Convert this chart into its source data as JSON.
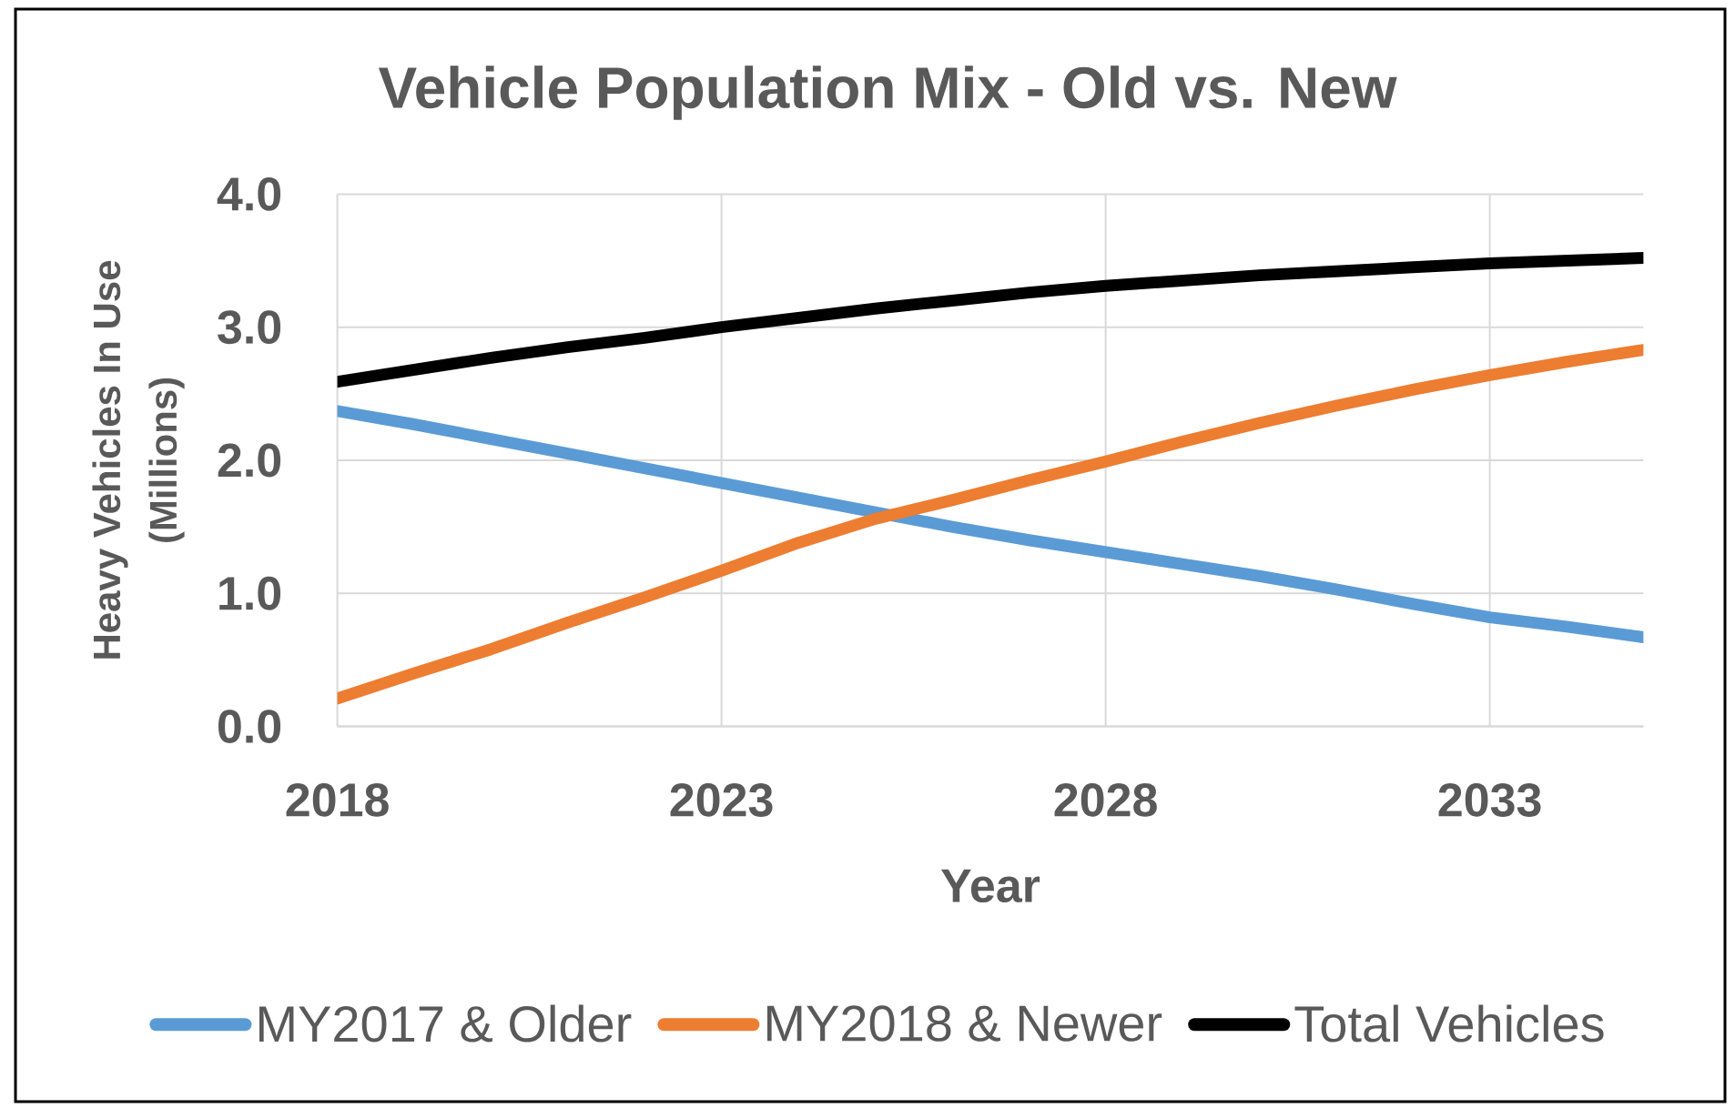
{
  "chart_data": {
    "type": "line",
    "title": "Vehicle Population Mix - Old vs. New",
    "xlabel": "Year",
    "ylabel": "Heavy Vehicles In Use (Millions)",
    "x": [
      2018,
      2019,
      2020,
      2021,
      2022,
      2023,
      2024,
      2025,
      2026,
      2027,
      2028,
      2029,
      2030,
      2031,
      2032,
      2033,
      2034,
      2035
    ],
    "series": [
      {
        "name": "MY2017 & Older",
        "color": "#5b9bd5",
        "values": [
          2.37,
          2.27,
          2.16,
          2.05,
          1.94,
          1.83,
          1.72,
          1.61,
          1.5,
          1.4,
          1.31,
          1.22,
          1.13,
          1.03,
          0.92,
          0.82,
          0.75,
          0.67
        ]
      },
      {
        "name": "MY2018 & Newer",
        "color": "#ed7d31",
        "values": [
          0.21,
          0.4,
          0.58,
          0.78,
          0.97,
          1.17,
          1.38,
          1.56,
          1.7,
          1.85,
          1.99,
          2.14,
          2.28,
          2.41,
          2.53,
          2.64,
          2.74,
          2.83
        ]
      },
      {
        "name": "Total Vehicles",
        "color": "#000000",
        "values": [
          2.59,
          2.68,
          2.77,
          2.85,
          2.92,
          3.0,
          3.07,
          3.14,
          3.2,
          3.26,
          3.31,
          3.35,
          3.39,
          3.42,
          3.45,
          3.48,
          3.5,
          3.52
        ]
      }
    ],
    "xlim": [
      2018,
      2035
    ],
    "ylim": [
      0,
      4
    ],
    "xticks": [
      2018,
      2023,
      2028,
      2033
    ],
    "yticks": [
      {
        "value": 0,
        "label": "0.0"
      },
      {
        "value": 1,
        "label": "1.0"
      },
      {
        "value": 2,
        "label": "2.0"
      },
      {
        "value": 3,
        "label": "3.0"
      },
      {
        "value": 4,
        "label": "4.0"
      }
    ],
    "grid": true,
    "legend": "bottom",
    "marker": "none",
    "line_style": "solid"
  }
}
